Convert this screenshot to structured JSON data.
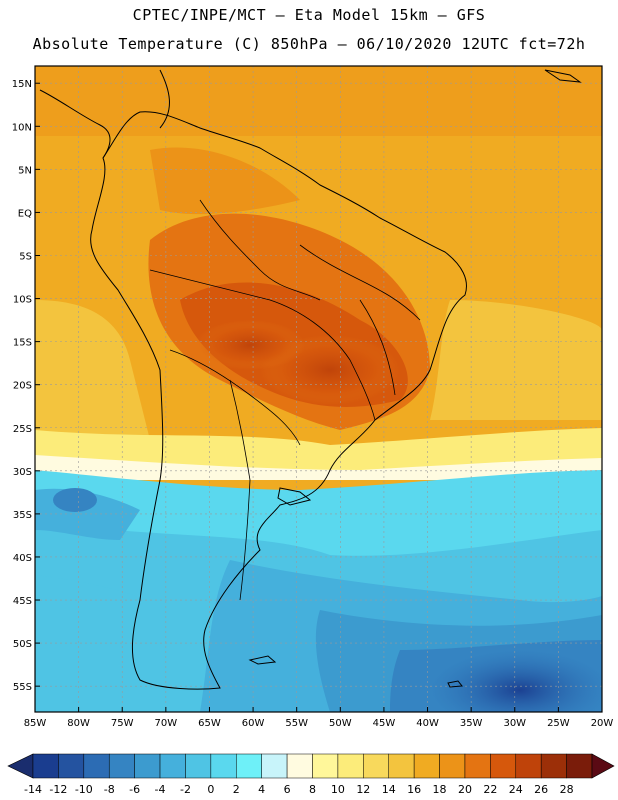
{
  "header": {
    "line1": "CPTEC/INPE/MCT –  Eta Model 15km – GFS",
    "line2": "Absolute Temperature (C) 850hPa – 06/10/2020 12UTC fct=72h"
  },
  "map_axes": {
    "lat_ticks": [
      "15N",
      "10N",
      "5N",
      "EQ",
      "5S",
      "10S",
      "15S",
      "20S",
      "25S",
      "30S",
      "35S",
      "40S",
      "45S",
      "50S",
      "55S"
    ],
    "lon_ticks": [
      "85W",
      "80W",
      "75W",
      "70W",
      "65W",
      "60W",
      "55W",
      "50W",
      "45W",
      "40W",
      "35W",
      "30W",
      "25W",
      "20W"
    ],
    "lat_range": [
      17,
      -58
    ],
    "lon_range": [
      -85,
      -20
    ]
  },
  "colorbar": {
    "labels": [
      "-14",
      "-12",
      "-10",
      "-8",
      "-6",
      "-4",
      "-2",
      "0",
      "2",
      "4",
      "6",
      "8",
      "10",
      "12",
      "14",
      "16",
      "18",
      "20",
      "22",
      "24",
      "26",
      "28"
    ],
    "colors": [
      "#1a3d8f",
      "#2453a0",
      "#2c6cb4",
      "#3584c2",
      "#3c9bcf",
      "#45b0dc",
      "#4fc4e4",
      "#5ad8ee",
      "#6ef0f8",
      "#c8f4fa",
      "#fffbe0",
      "#fff79a",
      "#fcec7a",
      "#f8d95c",
      "#f3c43e",
      "#f0ab22",
      "#ec9318",
      "#e47412",
      "#d6580c",
      "#bf430a",
      "#9c2f08",
      "#7a1c0a"
    ],
    "min_arrow_color": "#1a2d6e",
    "max_arrow_color": "#5a0a14"
  }
}
